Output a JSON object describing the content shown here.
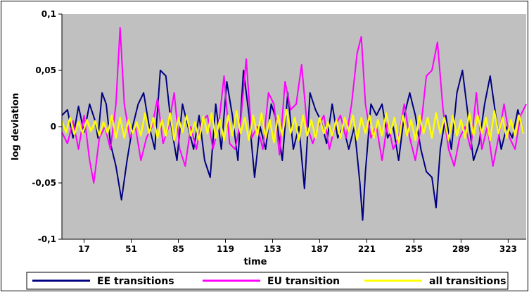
{
  "chart_data": {
    "type": "line",
    "title": "",
    "xlabel": "time",
    "ylabel": "log deviation",
    "xlim": [
      1,
      336
    ],
    "ylim": [
      -0.1,
      0.1
    ],
    "x_ticks": [
      17,
      51,
      85,
      119,
      153,
      187,
      221,
      255,
      289,
      323
    ],
    "y_ticks": [
      {
        "value": 0.1,
        "label": "0,1"
      },
      {
        "value": 0.05,
        "label": "0,05"
      },
      {
        "value": 0,
        "label": "0"
      },
      {
        "value": -0.05,
        "label": "-0,05"
      },
      {
        "value": -0.1,
        "label": "-0,1"
      }
    ],
    "grid": false,
    "plot_background": "#c0c0c0",
    "legend_position": "bottom",
    "series": [
      {
        "name": "EE transitions",
        "color": "#000080",
        "points": [
          [
            1,
            0.01
          ],
          [
            5,
            0.015
          ],
          [
            9,
            -0.01
          ],
          [
            13,
            0.018
          ],
          [
            17,
            -0.005
          ],
          [
            21,
            0.02
          ],
          [
            25,
            0.005
          ],
          [
            27,
            -0.01
          ],
          [
            30,
            0.03
          ],
          [
            33,
            0.02
          ],
          [
            36,
            -0.015
          ],
          [
            40,
            -0.035
          ],
          [
            44,
            -0.065
          ],
          [
            48,
            -0.03
          ],
          [
            52,
            0.0
          ],
          [
            56,
            0.02
          ],
          [
            60,
            0.03
          ],
          [
            64,
            0.0
          ],
          [
            68,
            -0.02
          ],
          [
            72,
            0.05
          ],
          [
            76,
            0.045
          ],
          [
            80,
            0.0
          ],
          [
            84,
            -0.03
          ],
          [
            88,
            0.02
          ],
          [
            92,
            0.0
          ],
          [
            96,
            -0.02
          ],
          [
            100,
            0.01
          ],
          [
            104,
            -0.03
          ],
          [
            108,
            -0.045
          ],
          [
            112,
            0.02
          ],
          [
            116,
            -0.02
          ],
          [
            120,
            0.04
          ],
          [
            124,
            0.01
          ],
          [
            128,
            -0.03
          ],
          [
            132,
            0.05
          ],
          [
            136,
            0.01
          ],
          [
            140,
            -0.045
          ],
          [
            144,
            0.0
          ],
          [
            148,
            -0.02
          ],
          [
            152,
            0.02
          ],
          [
            156,
            0.005
          ],
          [
            160,
            -0.03
          ],
          [
            164,
            0.03
          ],
          [
            168,
            -0.02
          ],
          [
            172,
            0.0
          ],
          [
            176,
            -0.055
          ],
          [
            180,
            0.03
          ],
          [
            184,
            0.015
          ],
          [
            188,
            0.005
          ],
          [
            192,
            -0.015
          ],
          [
            196,
            0.02
          ],
          [
            200,
            -0.01
          ],
          [
            204,
            0.0
          ],
          [
            208,
            -0.02
          ],
          [
            212,
            0.0
          ],
          [
            216,
            -0.05
          ],
          [
            218,
            -0.083
          ],
          [
            220,
            -0.04
          ],
          [
            224,
            0.02
          ],
          [
            228,
            0.01
          ],
          [
            232,
            0.02
          ],
          [
            236,
            -0.01
          ],
          [
            240,
            0.0
          ],
          [
            244,
            -0.03
          ],
          [
            248,
            0.01
          ],
          [
            252,
            0.03
          ],
          [
            256,
            0.01
          ],
          [
            260,
            -0.02
          ],
          [
            264,
            -0.04
          ],
          [
            268,
            -0.045
          ],
          [
            271,
            -0.072
          ],
          [
            274,
            -0.02
          ],
          [
            278,
            0.01
          ],
          [
            282,
            -0.02
          ],
          [
            286,
            0.03
          ],
          [
            290,
            0.05
          ],
          [
            294,
            0.01
          ],
          [
            298,
            -0.03
          ],
          [
            302,
            -0.015
          ],
          [
            306,
            0.02
          ],
          [
            310,
            0.045
          ],
          [
            314,
            0.01
          ],
          [
            318,
            -0.02
          ],
          [
            322,
            0.0
          ],
          [
            326,
            -0.01
          ],
          [
            330,
            0.015
          ],
          [
            334,
            -0.005
          ]
        ]
      },
      {
        "name": "EU transition",
        "color": "#ff00ff",
        "points": [
          [
            1,
            -0.005
          ],
          [
            5,
            -0.015
          ],
          [
            9,
            0.005
          ],
          [
            13,
            -0.02
          ],
          [
            17,
            0.01
          ],
          [
            21,
            -0.03
          ],
          [
            24,
            -0.05
          ],
          [
            28,
            -0.01
          ],
          [
            32,
            0.0
          ],
          [
            36,
            -0.02
          ],
          [
            40,
            0.02
          ],
          [
            43,
            0.088
          ],
          [
            46,
            0.02
          ],
          [
            50,
            -0.01
          ],
          [
            54,
            0.0
          ],
          [
            58,
            -0.03
          ],
          [
            62,
            -0.01
          ],
          [
            66,
            0.0
          ],
          [
            70,
            0.025
          ],
          [
            74,
            -0.015
          ],
          [
            78,
            0.0
          ],
          [
            82,
            0.03
          ],
          [
            86,
            -0.02
          ],
          [
            90,
            -0.035
          ],
          [
            94,
            0.0
          ],
          [
            98,
            -0.02
          ],
          [
            102,
            0.005
          ],
          [
            106,
            0.01
          ],
          [
            110,
            -0.02
          ],
          [
            114,
            0.0
          ],
          [
            118,
            0.045
          ],
          [
            122,
            -0.015
          ],
          [
            126,
            -0.02
          ],
          [
            130,
            0.005
          ],
          [
            134,
            0.06
          ],
          [
            138,
            -0.01
          ],
          [
            142,
            0.0
          ],
          [
            146,
            -0.02
          ],
          [
            150,
            0.03
          ],
          [
            154,
            0.02
          ],
          [
            158,
            -0.025
          ],
          [
            162,
            0.04
          ],
          [
            166,
            0.015
          ],
          [
            170,
            0.02
          ],
          [
            174,
            0.055
          ],
          [
            178,
            0.0
          ],
          [
            182,
            -0.015
          ],
          [
            186,
            0.0
          ],
          [
            190,
            0.01
          ],
          [
            194,
            -0.02
          ],
          [
            198,
            0.0
          ],
          [
            202,
            0.01
          ],
          [
            206,
            -0.01
          ],
          [
            210,
            0.02
          ],
          [
            214,
            0.065
          ],
          [
            217,
            0.08
          ],
          [
            220,
            0.02
          ],
          [
            224,
            -0.01
          ],
          [
            228,
            0.0
          ],
          [
            232,
            -0.03
          ],
          [
            236,
            0.005
          ],
          [
            240,
            -0.02
          ],
          [
            244,
            -0.01
          ],
          [
            248,
            0.02
          ],
          [
            252,
            -0.01
          ],
          [
            256,
            -0.03
          ],
          [
            260,
            0.0
          ],
          [
            264,
            0.045
          ],
          [
            268,
            0.05
          ],
          [
            272,
            0.075
          ],
          [
            276,
            0.015
          ],
          [
            280,
            -0.02
          ],
          [
            284,
            -0.035
          ],
          [
            288,
            -0.01
          ],
          [
            292,
            0.0
          ],
          [
            296,
            -0.02
          ],
          [
            300,
            0.03
          ],
          [
            304,
            -0.02
          ],
          [
            308,
            0.0
          ],
          [
            312,
            -0.035
          ],
          [
            316,
            -0.01
          ],
          [
            320,
            0.02
          ],
          [
            324,
            -0.01
          ],
          [
            328,
            -0.02
          ],
          [
            332,
            0.01
          ],
          [
            336,
            0.02
          ]
        ]
      },
      {
        "name": "all transitions",
        "color": "#ffff00",
        "points": [
          [
            1,
            0.005
          ],
          [
            4,
            -0.005
          ],
          [
            7,
            0.008
          ],
          [
            10,
            -0.007
          ],
          [
            13,
            0.004
          ],
          [
            16,
            -0.006
          ],
          [
            19,
            0.006
          ],
          [
            22,
            -0.004
          ],
          [
            25,
            0.005
          ],
          [
            28,
            -0.008
          ],
          [
            31,
            0.004
          ],
          [
            34,
            -0.006
          ],
          [
            37,
            0.01
          ],
          [
            40,
            -0.01
          ],
          [
            43,
            0.008
          ],
          [
            46,
            -0.01
          ],
          [
            49,
            0.006
          ],
          [
            52,
            -0.006
          ],
          [
            55,
            0.004
          ],
          [
            58,
            -0.008
          ],
          [
            61,
            0.012
          ],
          [
            64,
            -0.006
          ],
          [
            67,
            0.008
          ],
          [
            70,
            -0.01
          ],
          [
            73,
            0.006
          ],
          [
            76,
            -0.008
          ],
          [
            79,
            0.012
          ],
          [
            82,
            -0.012
          ],
          [
            85,
            0.008
          ],
          [
            88,
            -0.005
          ],
          [
            91,
            0.01
          ],
          [
            94,
            -0.008
          ],
          [
            97,
            0.004
          ],
          [
            100,
            -0.012
          ],
          [
            103,
            0.009
          ],
          [
            106,
            -0.006
          ],
          [
            109,
            0.012
          ],
          [
            112,
            -0.01
          ],
          [
            115,
            0.006
          ],
          [
            118,
            -0.012
          ],
          [
            121,
            0.01
          ],
          [
            124,
            -0.008
          ],
          [
            127,
            0.014
          ],
          [
            130,
            -0.006
          ],
          [
            133,
            0.008
          ],
          [
            136,
            -0.012
          ],
          [
            139,
            0.01
          ],
          [
            142,
            -0.008
          ],
          [
            145,
            0.012
          ],
          [
            148,
            -0.01
          ],
          [
            151,
            0.006
          ],
          [
            154,
            -0.014
          ],
          [
            157,
            0.01
          ],
          [
            160,
            -0.008
          ],
          [
            163,
            0.015
          ],
          [
            166,
            -0.006
          ],
          [
            169,
            0.008
          ],
          [
            172,
            -0.012
          ],
          [
            175,
            0.01
          ],
          [
            178,
            -0.008
          ],
          [
            181,
            0.006
          ],
          [
            184,
            -0.01
          ],
          [
            187,
            0.008
          ],
          [
            190,
            -0.006
          ],
          [
            193,
            0.004
          ],
          [
            196,
            -0.008
          ],
          [
            199,
            0.006
          ],
          [
            202,
            -0.01
          ],
          [
            205,
            0.008
          ],
          [
            208,
            -0.004
          ],
          [
            211,
            0.01
          ],
          [
            214,
            -0.012
          ],
          [
            217,
            0.008
          ],
          [
            220,
            -0.006
          ],
          [
            223,
            0.01
          ],
          [
            226,
            -0.01
          ],
          [
            229,
            0.006
          ],
          [
            232,
            -0.008
          ],
          [
            235,
            0.012
          ],
          [
            238,
            -0.006
          ],
          [
            241,
            0.008
          ],
          [
            244,
            -0.014
          ],
          [
            247,
            0.01
          ],
          [
            250,
            -0.008
          ],
          [
            253,
            0.006
          ],
          [
            256,
            -0.012
          ],
          [
            259,
            0.01
          ],
          [
            262,
            -0.006
          ],
          [
            265,
            0.008
          ],
          [
            268,
            -0.01
          ],
          [
            271,
            0.012
          ],
          [
            274,
            -0.006
          ],
          [
            277,
            0.008
          ],
          [
            280,
            -0.012
          ],
          [
            283,
            0.01
          ],
          [
            286,
            -0.008
          ],
          [
            289,
            0.006
          ],
          [
            292,
            -0.01
          ],
          [
            295,
            0.012
          ],
          [
            298,
            -0.008
          ],
          [
            301,
            0.01
          ],
          [
            304,
            -0.006
          ],
          [
            307,
            0.008
          ],
          [
            310,
            -0.012
          ],
          [
            313,
            0.014
          ],
          [
            316,
            -0.006
          ],
          [
            319,
            0.008
          ],
          [
            322,
            -0.01
          ],
          [
            325,
            0.006
          ],
          [
            328,
            -0.008
          ],
          [
            331,
            0.01
          ],
          [
            334,
            -0.006
          ]
        ]
      }
    ]
  }
}
